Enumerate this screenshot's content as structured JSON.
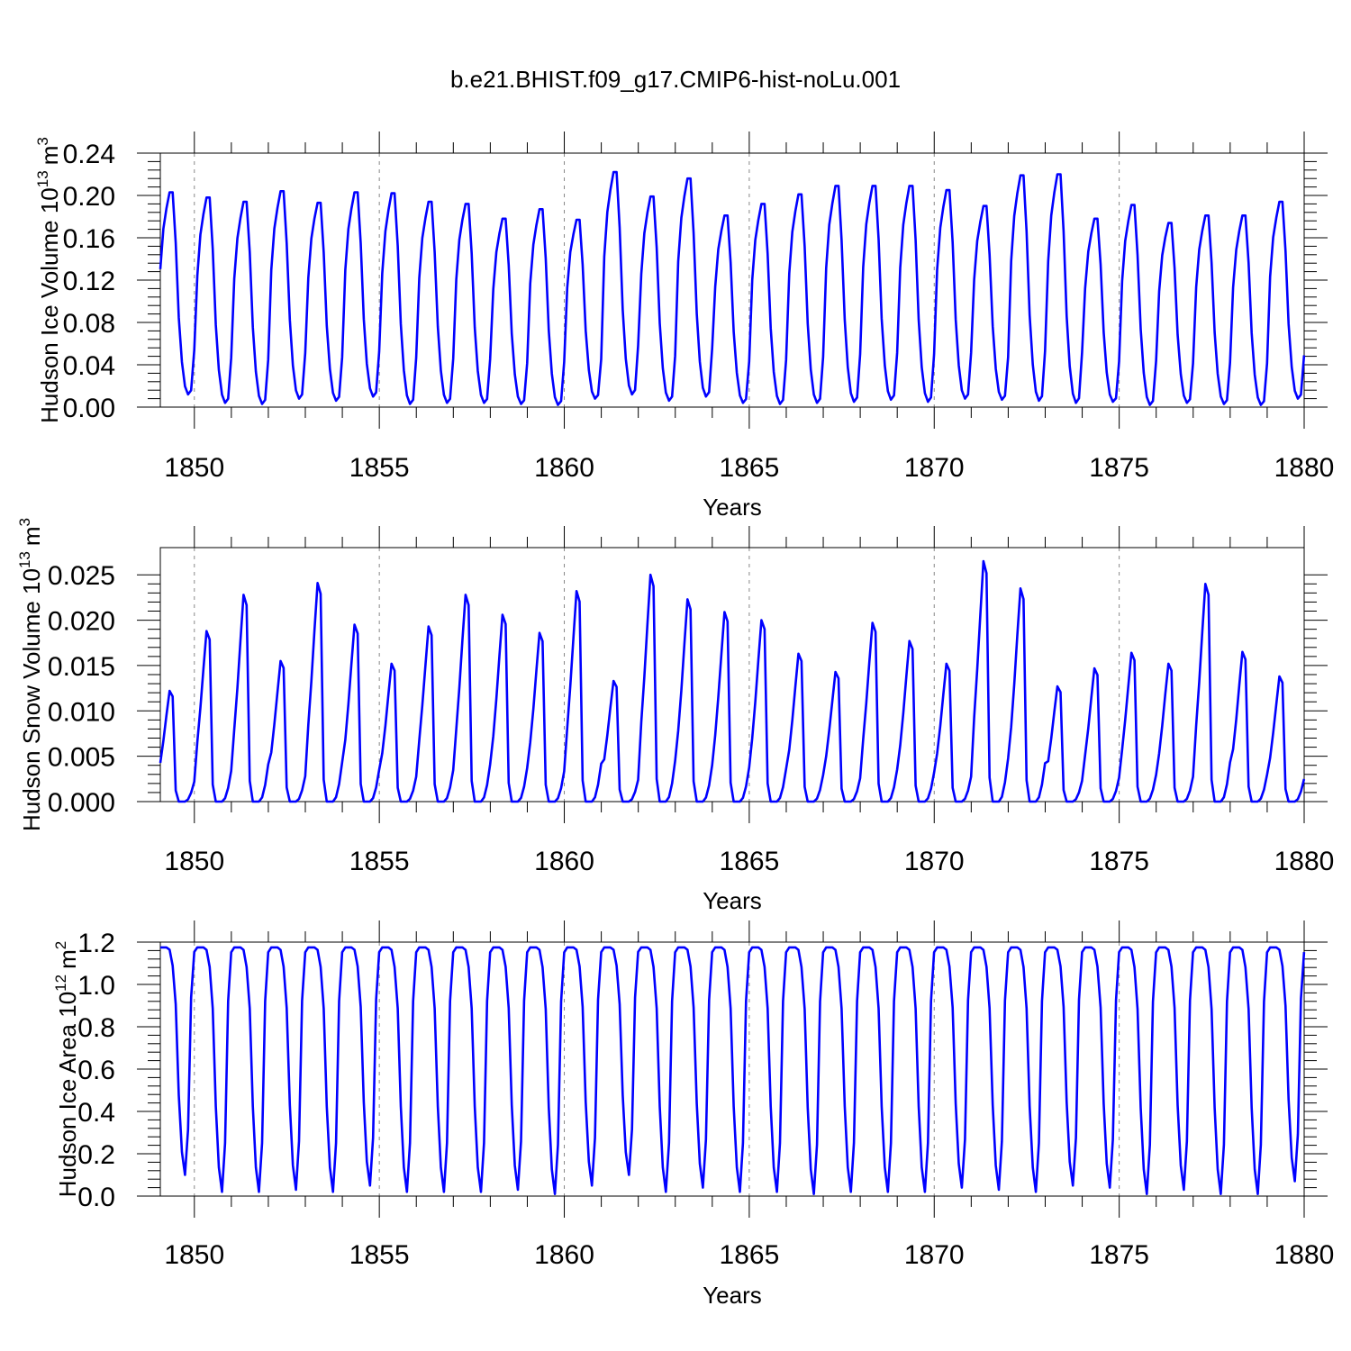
{
  "figure": {
    "title": "b.e21.BHIST.f09_g17.CMIP6-hist-noLu.001"
  },
  "colors": {
    "series": "#0000ff",
    "axis": "#000000",
    "grid": "#888888"
  },
  "chart_data": [
    {
      "type": "line",
      "title": "",
      "xlabel": "Years",
      "ylabel": "Hudson Ice Volume 10",
      "ylabel_exponent": "13",
      "ylabel_unit": "m",
      "ylabel_unit_exponent": "3",
      "xlim": [
        1849.08,
        1880.0
      ],
      "ylim": [
        0,
        0.24
      ],
      "yticks": [
        0,
        0.04,
        0.08,
        0.12,
        0.16,
        0.2,
        0.24
      ],
      "ytick_labels": [
        "0.00",
        "0.04",
        "0.08",
        "0.12",
        "0.16",
        "0.20",
        "0.24"
      ],
      "xticks": [
        1850,
        1855,
        1860,
        1865,
        1870,
        1875,
        1880
      ],
      "xtick_labels": [
        "1850",
        "1855",
        "1860",
        "1865",
        "1870",
        "1875",
        "1880"
      ],
      "x_dashed_lines": [
        1850,
        1855,
        1860,
        1865,
        1870,
        1875
      ],
      "series": [
        {
          "name": "Hudson Ice Volume",
          "start_year": 1849.08,
          "step": 0.0833333,
          "seasonal_shape": [
            0.62,
            0.82,
            0.92,
            1.0,
            1.0,
            0.75,
            0.38,
            0.16,
            0.04,
            0.0,
            0.02,
            0.22
          ],
          "annual_peaks": [
            0.203,
            0.198,
            0.194,
            0.204,
            0.193,
            0.203,
            0.202,
            0.194,
            0.192,
            0.178,
            0.187,
            0.177,
            0.222,
            0.199,
            0.216,
            0.181,
            0.192,
            0.201,
            0.209,
            0.209,
            0.209,
            0.205,
            0.19,
            0.219,
            0.22,
            0.178,
            0.191,
            0.174,
            0.181,
            0.181,
            0.194
          ],
          "annual_mins": [
            0.012,
            0.004,
            0.003,
            0.008,
            0.006,
            0.01,
            0.003,
            0.004,
            0.004,
            0.003,
            0.002,
            0.008,
            0.012,
            0.006,
            0.01,
            0.004,
            0.003,
            0.004,
            0.005,
            0.007,
            0.005,
            0.008,
            0.007,
            0.006,
            0.004,
            0.005,
            0.002,
            0.004,
            0.003,
            0.002,
            0.008
          ]
        }
      ]
    },
    {
      "type": "line",
      "title": "",
      "xlabel": "Years",
      "ylabel": "Hudson Snow Volume 10",
      "ylabel_exponent": "13",
      "ylabel_unit": "m",
      "ylabel_unit_exponent": "3",
      "xlim": [
        1849.08,
        1880.0
      ],
      "ylim": [
        0,
        0.028
      ],
      "yticks": [
        0,
        0.005,
        0.01,
        0.015,
        0.02,
        0.025
      ],
      "ytick_labels": [
        "0.000",
        "0.005",
        "0.010",
        "0.015",
        "0.020",
        "0.025"
      ],
      "xticks": [
        1850,
        1855,
        1860,
        1865,
        1870,
        1875,
        1880
      ],
      "xtick_labels": [
        "1850",
        "1855",
        "1860",
        "1865",
        "1870",
        "1875",
        "1880"
      ],
      "x_dashed_lines": [
        1850,
        1855,
        1860,
        1865,
        1870,
        1875
      ],
      "series": [
        {
          "name": "Hudson Snow Volume",
          "start_year": 1849.08,
          "step": 0.0833333,
          "seasonal_shape": [
            0.35,
            0.55,
            0.78,
            1.0,
            0.95,
            0.1,
            0.0,
            0.0,
            0.0,
            0.02,
            0.08,
            0.18
          ],
          "annual_peaks": [
            0.0122,
            0.0188,
            0.0228,
            0.0155,
            0.0241,
            0.0195,
            0.0152,
            0.0193,
            0.0228,
            0.0206,
            0.0186,
            0.0232,
            0.0133,
            0.025,
            0.0223,
            0.0209,
            0.02,
            0.0163,
            0.0143,
            0.0197,
            0.0177,
            0.0152,
            0.0265,
            0.0235,
            0.0127,
            0.0147,
            0.0164,
            0.0152,
            0.024,
            0.0165,
            0.0138
          ],
          "annual_mins": [
            0.0,
            0.0,
            0.0,
            0.0,
            0.0,
            0.0,
            0.0,
            0.0,
            0.0,
            0.0,
            0.0,
            0.0,
            0.0,
            0.0,
            0.0,
            0.0,
            0.0,
            0.0,
            0.0,
            0.0,
            0.0,
            0.0,
            0.0,
            0.0,
            0.0,
            0.0,
            0.0,
            0.0,
            0.0,
            0.0,
            0.0
          ]
        }
      ]
    },
    {
      "type": "line",
      "title": "",
      "xlabel": "Years",
      "ylabel": "Hudson Ice Area 10",
      "ylabel_exponent": "12",
      "ylabel_unit": "m",
      "ylabel_unit_exponent": "2",
      "xlim": [
        1849.08,
        1880.0
      ],
      "ylim": [
        0,
        1.2
      ],
      "yticks": [
        0,
        0.2,
        0.4,
        0.6,
        0.8,
        1.0,
        1.2
      ],
      "ytick_labels": [
        "0.0",
        "0.2",
        "0.4",
        "0.6",
        "0.8",
        "1.0",
        "1.2"
      ],
      "xticks": [
        1850,
        1855,
        1860,
        1865,
        1870,
        1875,
        1880
      ],
      "xtick_labels": [
        "1850",
        "1855",
        "1860",
        "1865",
        "1870",
        "1875",
        "1880"
      ],
      "x_dashed_lines": [
        1850,
        1855,
        1860,
        1865,
        1870,
        1875
      ],
      "series": [
        {
          "name": "Hudson Ice Area",
          "start_year": 1849.08,
          "step": 0.0833333,
          "seasonal_shape": [
            1.0,
            1.0,
            1.0,
            0.99,
            0.92,
            0.75,
            0.35,
            0.1,
            0.0,
            0.2,
            0.78,
            0.98
          ],
          "annual_peaks": [
            1.175,
            1.175,
            1.175,
            1.175,
            1.175,
            1.175,
            1.175,
            1.175,
            1.175,
            1.175,
            1.175,
            1.175,
            1.175,
            1.175,
            1.175,
            1.175,
            1.175,
            1.175,
            1.175,
            1.175,
            1.175,
            1.175,
            1.175,
            1.175,
            1.175,
            1.175,
            1.175,
            1.175,
            1.175,
            1.175,
            1.175
          ],
          "annual_mins": [
            0.1,
            0.02,
            0.02,
            0.03,
            0.02,
            0.05,
            0.02,
            0.02,
            0.02,
            0.03,
            0.01,
            0.05,
            0.1,
            0.02,
            0.04,
            0.02,
            0.02,
            0.01,
            0.02,
            0.02,
            0.02,
            0.04,
            0.03,
            0.02,
            0.05,
            0.04,
            0.01,
            0.03,
            0.01,
            0.01,
            0.07
          ]
        }
      ]
    }
  ]
}
